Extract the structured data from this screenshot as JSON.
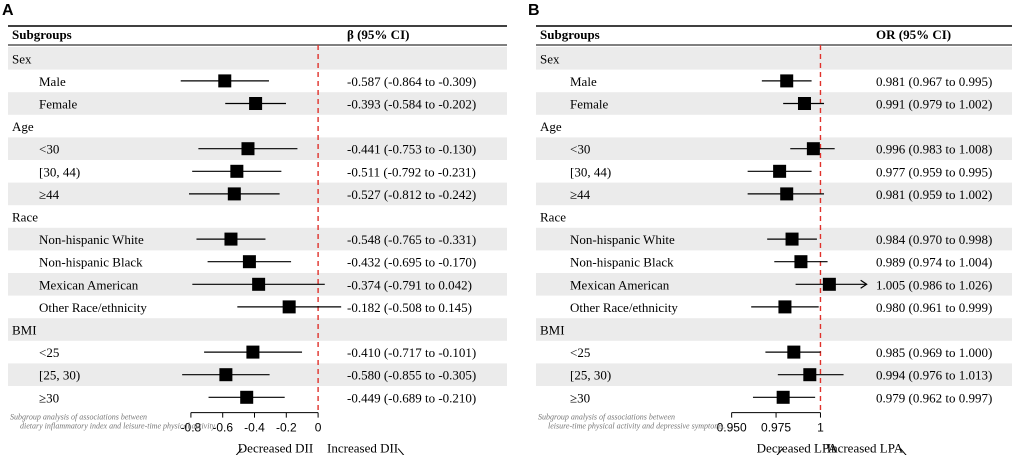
{
  "chart_data": [
    {
      "panel": "A",
      "type": "forest",
      "header_left": "Subgroups",
      "header_right": "β (95% CI)",
      "xlim": [
        -0.9,
        0.1
      ],
      "reference": 0,
      "ticks": [
        -0.8,
        -0.6,
        -0.4,
        -0.2,
        0
      ],
      "tick_labels": [
        "-0.8",
        "-0.6",
        "-0.4",
        "-0.2",
        "0"
      ],
      "left_direction": "Decreased DII",
      "right_direction": "Increased DII",
      "caption": [
        "Subgroup analysis of associations between",
        "dietary inflammatory index and leisure-time physical activity."
      ],
      "rows": [
        {
          "type": "group",
          "label": "Sex"
        },
        {
          "type": "sub",
          "label": "Male",
          "est": -0.587,
          "lo": -0.864,
          "hi": -0.309,
          "text": "-0.587 (-0.864 to -0.309)"
        },
        {
          "type": "sub",
          "label": "Female",
          "est": -0.393,
          "lo": -0.584,
          "hi": -0.202,
          "text": "-0.393 (-0.584 to -0.202)"
        },
        {
          "type": "group",
          "label": "Age"
        },
        {
          "type": "sub",
          "label": "<30",
          "est": -0.441,
          "lo": -0.753,
          "hi": -0.13,
          "text": "-0.441 (-0.753 to -0.130)"
        },
        {
          "type": "sub",
          "label": "[30, 44)",
          "est": -0.511,
          "lo": -0.792,
          "hi": -0.231,
          "text": "-0.511 (-0.792 to -0.231)"
        },
        {
          "type": "sub",
          "label": "≥44",
          "est": -0.527,
          "lo": -0.812,
          "hi": -0.242,
          "text": "-0.527 (-0.812 to -0.242)"
        },
        {
          "type": "group",
          "label": "Race"
        },
        {
          "type": "sub",
          "label": "Non-hispanic White",
          "est": -0.548,
          "lo": -0.765,
          "hi": -0.331,
          "text": "-0.548 (-0.765 to -0.331)"
        },
        {
          "type": "sub",
          "label": "Non-hispanic Black",
          "est": -0.432,
          "lo": -0.695,
          "hi": -0.17,
          "text": "-0.432 (-0.695 to -0.170)"
        },
        {
          "type": "sub",
          "label": "Mexican American",
          "est": -0.374,
          "lo": -0.791,
          "hi": 0.042,
          "text": "-0.374 (-0.791 to 0.042)"
        },
        {
          "type": "sub",
          "label": "Other Race/ethnicity",
          "est": -0.182,
          "lo": -0.508,
          "hi": 0.145,
          "text": "-0.182 (-0.508 to 0.145)"
        },
        {
          "type": "group",
          "label": "BMI"
        },
        {
          "type": "sub",
          "label": "<25",
          "est": -0.41,
          "lo": -0.717,
          "hi": -0.101,
          "text": "-0.410 (-0.717 to -0.101)"
        },
        {
          "type": "sub",
          "label": "[25, 30)",
          "est": -0.58,
          "lo": -0.855,
          "hi": -0.305,
          "text": "-0.580 (-0.855 to -0.305)"
        },
        {
          "type": "sub",
          "label": "≥30",
          "est": -0.449,
          "lo": -0.689,
          "hi": -0.21,
          "text": "-0.449 (-0.689 to -0.210)"
        }
      ]
    },
    {
      "panel": "B",
      "type": "forest",
      "header_left": "Subgroups",
      "header_right": "OR (95% CI)",
      "xlim": [
        0.935,
        1.02
      ],
      "reference": 1,
      "ticks": [
        0.95,
        0.975,
        1
      ],
      "tick_labels": [
        "0.950",
        "0.975",
        "1"
      ],
      "left_direction": "Decreased LPA",
      "right_direction": "Increased LPA",
      "caption": [
        "Subgroup analysis of associations between",
        "leisure-time physical activity and depressive symptoms."
      ],
      "rows": [
        {
          "type": "group",
          "label": "Sex"
        },
        {
          "type": "sub",
          "label": "Male",
          "est": 0.981,
          "lo": 0.967,
          "hi": 0.995,
          "text": "0.981 (0.967 to 0.995)"
        },
        {
          "type": "sub",
          "label": "Female",
          "est": 0.991,
          "lo": 0.979,
          "hi": 1.002,
          "text": "0.991 (0.979 to 1.002)"
        },
        {
          "type": "group",
          "label": "Age"
        },
        {
          "type": "sub",
          "label": "<30",
          "est": 0.996,
          "lo": 0.983,
          "hi": 1.008,
          "text": "0.996 (0.983 to 1.008)"
        },
        {
          "type": "sub",
          "label": "[30, 44)",
          "est": 0.977,
          "lo": 0.959,
          "hi": 0.995,
          "text": "0.977 (0.959 to 0.995)"
        },
        {
          "type": "sub",
          "label": "≥44",
          "est": 0.981,
          "lo": 0.959,
          "hi": 1.002,
          "text": "0.981 (0.959 to 1.002)"
        },
        {
          "type": "group",
          "label": "Race"
        },
        {
          "type": "sub",
          "label": "Non-hispanic White",
          "est": 0.984,
          "lo": 0.97,
          "hi": 0.998,
          "text": "0.984 (0.970 to 0.998)"
        },
        {
          "type": "sub",
          "label": "Non-hispanic Black",
          "est": 0.989,
          "lo": 0.974,
          "hi": 1.004,
          "text": "0.989 (0.974 to 1.004)"
        },
        {
          "type": "sub",
          "label": "Mexican American",
          "est": 1.005,
          "lo": 0.986,
          "hi": 1.026,
          "text": "1.005 (0.986 to 1.026)",
          "arrow_right": true
        },
        {
          "type": "sub",
          "label": "Other Race/ethnicity",
          "est": 0.98,
          "lo": 0.961,
          "hi": 0.999,
          "text": "0.980 (0.961 to 0.999)"
        },
        {
          "type": "group",
          "label": "BMI"
        },
        {
          "type": "sub",
          "label": "<25",
          "est": 0.985,
          "lo": 0.969,
          "hi": 1.0,
          "text": "0.985 (0.969 to 1.000)"
        },
        {
          "type": "sub",
          "label": "[25, 30)",
          "est": 0.994,
          "lo": 0.976,
          "hi": 1.013,
          "text": "0.994 (0.976 to 1.013)"
        },
        {
          "type": "sub",
          "label": "≥30",
          "est": 0.979,
          "lo": 0.962,
          "hi": 0.997,
          "text": "0.979 (0.962 to 0.997)"
        }
      ]
    }
  ]
}
